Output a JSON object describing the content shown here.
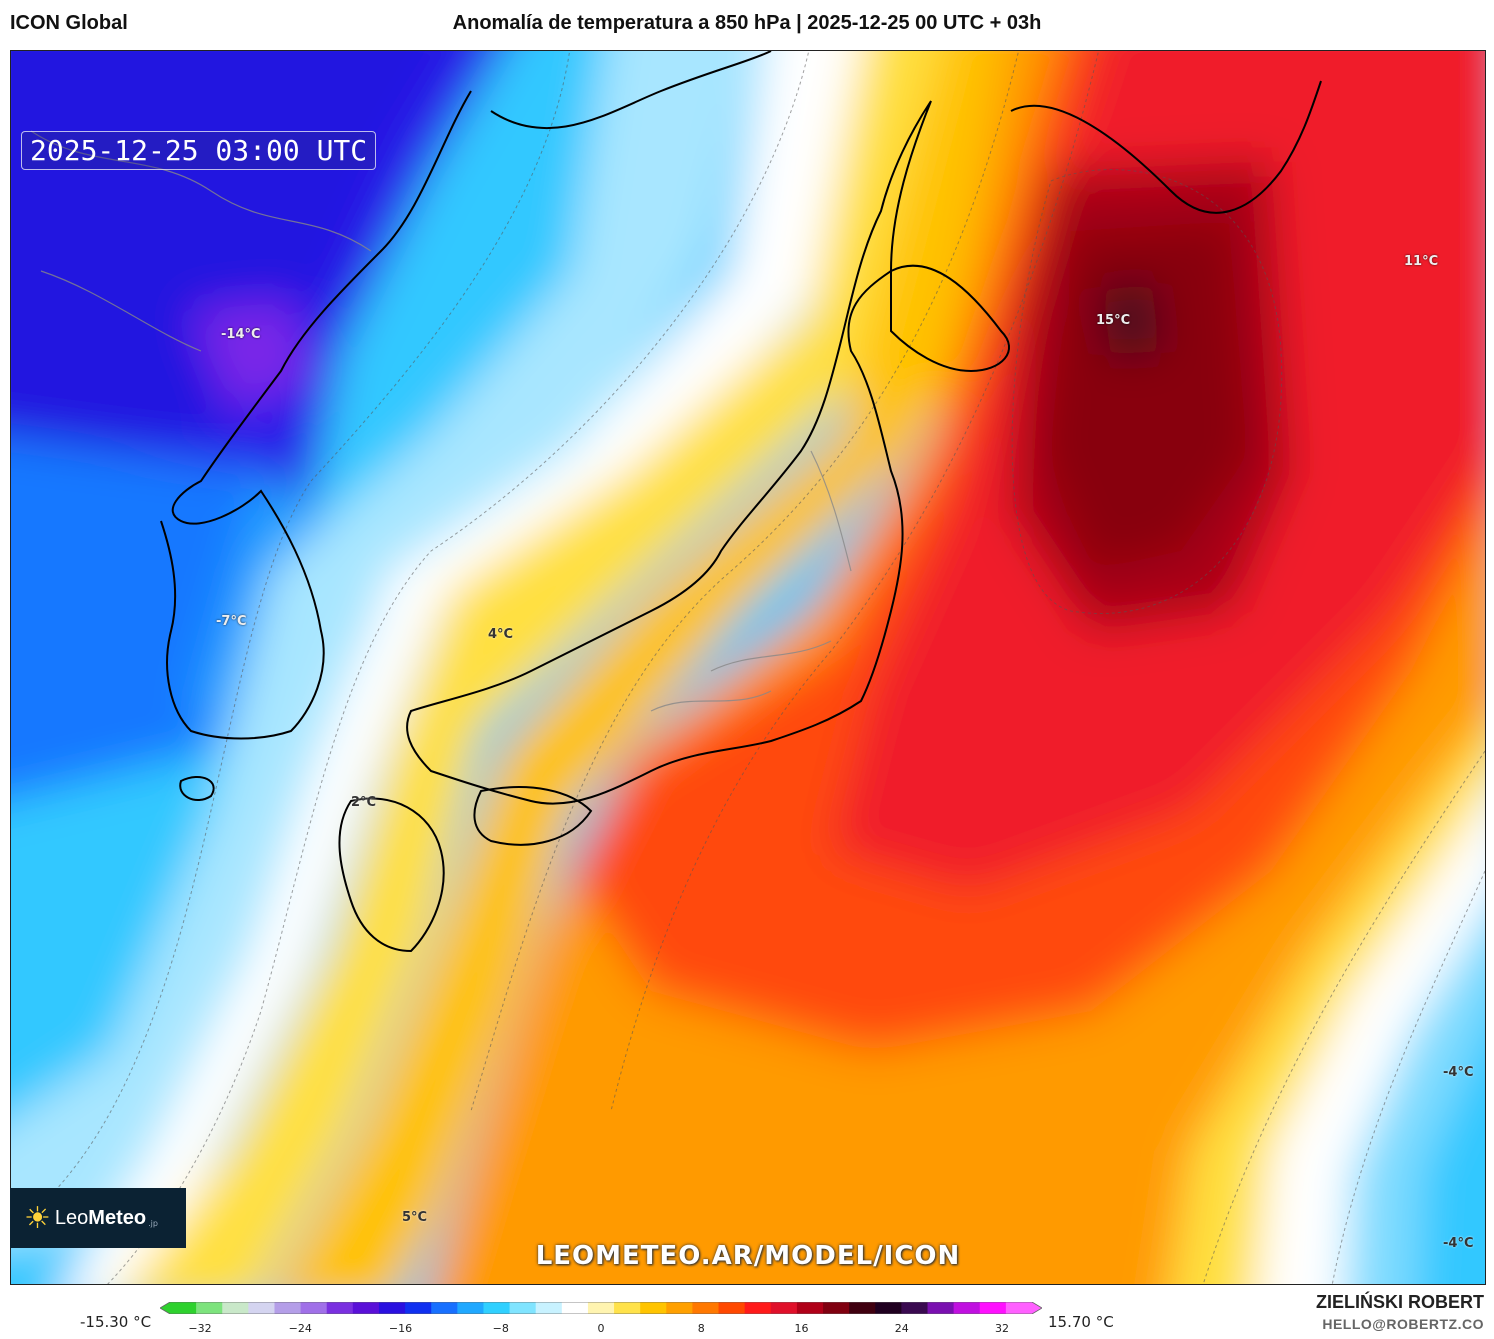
{
  "header": {
    "model": "ICON Global",
    "title": "Anomalía de temperatura a 850 hPa | 2025-12-25 00 UTC + 03h"
  },
  "map": {
    "timestamp": "2025-12-25 03:00 UTC",
    "watermark": "LEOMETEO.AR/MODEL/ICON",
    "labels": [
      {
        "id": "label-minus14",
        "text": "-14°C"
      },
      {
        "id": "label-minus7",
        "text": "-7°C"
      },
      {
        "id": "label-4",
        "text": "4°C"
      },
      {
        "id": "label-2",
        "text": "2°C"
      },
      {
        "id": "label-5",
        "text": "5°C"
      },
      {
        "id": "label-15",
        "text": "15°C"
      },
      {
        "id": "label-11",
        "text": "11°C"
      },
      {
        "id": "label-minus4-a",
        "text": "-4°C"
      },
      {
        "id": "label-minus4-b",
        "text": "-4°C"
      }
    ]
  },
  "logo": {
    "brand_light": "Leo",
    "brand_bold": "Meteo",
    "suffix": ".jp"
  },
  "scale": {
    "min_label": "-15.30 °C",
    "max_label": "15.70 °C",
    "ticks": [
      "−32",
      "−24",
      "−16",
      "−8",
      "0",
      "8",
      "16",
      "24",
      "32"
    ],
    "colors": [
      "#2ed12e",
      "#7de37d",
      "#c9e8c9",
      "#d4d4f0",
      "#b49ee8",
      "#a070e8",
      "#7a30e0",
      "#5a10d8",
      "#2a10e0",
      "#1030f0",
      "#1870ff",
      "#20a8ff",
      "#30d0ff",
      "#80e4ff",
      "#c8f2ff",
      "#ffffff",
      "#fff4b0",
      "#ffe24a",
      "#ffc400",
      "#ffa000",
      "#ff7800",
      "#ff4800",
      "#ff1a1a",
      "#e0102a",
      "#b00018",
      "#800010",
      "#400010",
      "#200020",
      "#3a0a50",
      "#7a10b0",
      "#c010e0",
      "#ff10ff",
      "#ff60ff"
    ]
  },
  "credit": {
    "name": "ZIELIŃSKI ROBERT",
    "email": "HELLO@ROBERTZ.CO"
  }
}
